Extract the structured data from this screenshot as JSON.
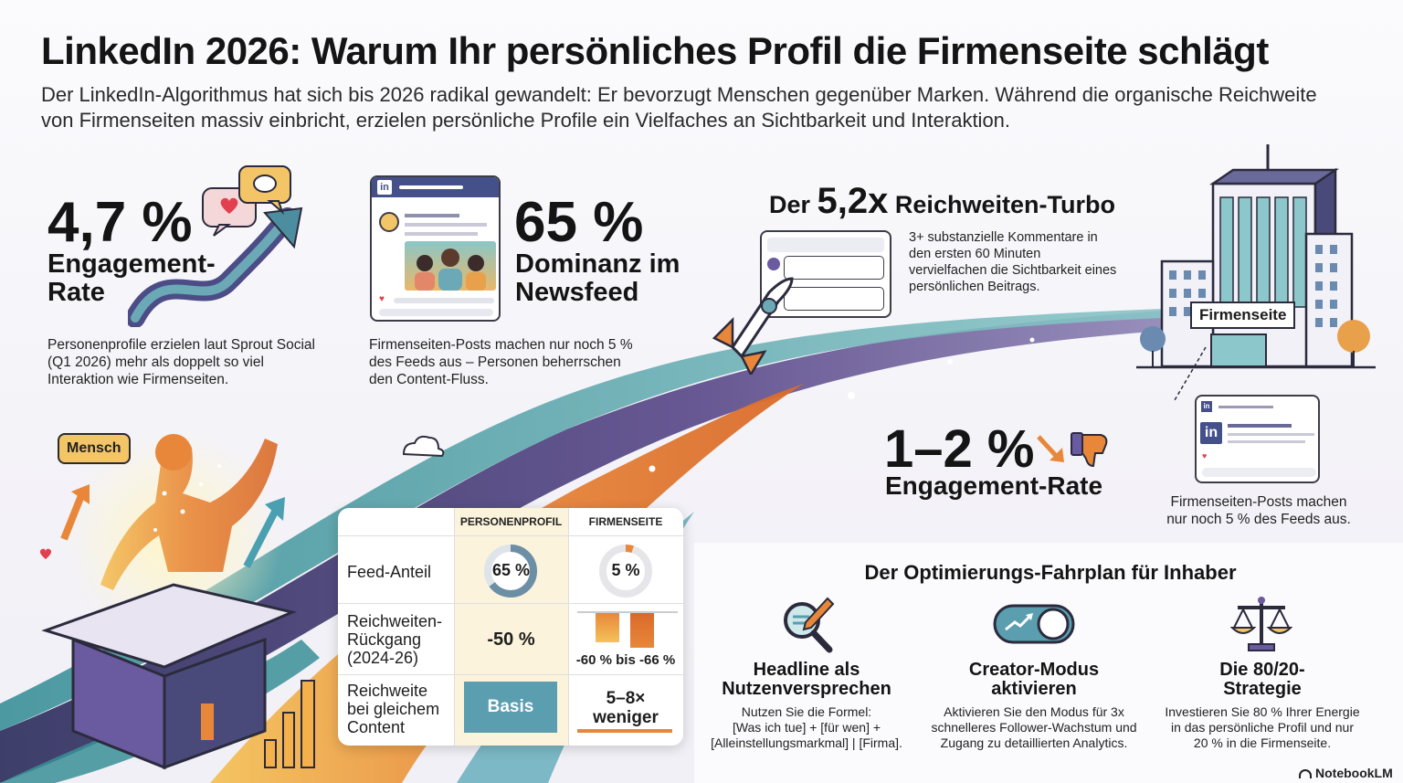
{
  "header": {
    "title": "LinkedIn 2026: Warum Ihr persönliches Profil die Firmenseite schlägt",
    "subtitle": "Der LinkedIn-Algorithmus hat sich bis 2026 radikal gewandelt: Er bevorzugt Menschen gegenüber Marken. Während die organische Reichweite von Firmenseiten massiv einbricht, erzielen persönliche Profile ein Vielfaches an Sichtbarkeit und Interaktion."
  },
  "stat_engagement": {
    "value": "4,7 %",
    "label_line1": "Engagement-",
    "label_line2": "Rate",
    "description": "Personenprofile erzielen laut Sprout Social (Q1 2026) mehr als doppelt so viel Interaktion wie Firmenseiten."
  },
  "stat_feed": {
    "value": "65 %",
    "label_line1": "Dominanz im",
    "label_line2": "Newsfeed",
    "description": "Firmenseiten-Posts machen nur noch 5 % des Feeds aus – Personen beherrschen den Content-Fluss.",
    "mock_logo": "in"
  },
  "stat_turbo": {
    "prefix": "Der",
    "value": "5,2x",
    "suffix": "Reichweiten-Turbo",
    "description": "3+ substanzielle Kommentare in den ersten 60 Minuten vervielfachen die Sichtbarkeit eines persönlichen Beitrags."
  },
  "company": {
    "building_label": "Firmenseite",
    "mock_logo": "in",
    "stat_value": "1–2 %",
    "stat_label": "Engagement-Rate",
    "description": "Firmenseiten-Posts machen nur noch 5 % des Feeds aus."
  },
  "human": {
    "bubble_label": "Mensch"
  },
  "comparison": {
    "headers": [
      "PERSONENPROFIL",
      "FIRMENSEITE"
    ],
    "rows": [
      {
        "label_lines": [
          "Feed-Anteil"
        ],
        "person": "65 %",
        "company": "5 %"
      },
      {
        "label_lines": [
          "Reichweiten-",
          "Rückgang",
          "(2024-26)"
        ],
        "person": "-50 %",
        "company": "-60 % bis -66 %"
      },
      {
        "label_lines": [
          "Reichweite",
          "bei gleichem",
          "Content"
        ],
        "person": "Basis",
        "company_lines": [
          "5–8×",
          "weniger"
        ]
      }
    ],
    "donut_person_fraction": 0.65,
    "donut_company_fraction": 0.05
  },
  "roadmap": {
    "title": "Der Optimierungs-Fahrplan für Inhaber",
    "items": [
      {
        "icon": "magnifier-pen-icon",
        "title_lines": [
          "Headline als",
          "Nutzenversprechen"
        ],
        "desc_lines": [
          "Nutzen Sie die Formel:",
          "[Was ich tue] + [für wen] +",
          "[Alleinstellungsmarkmal] | [Firma]."
        ]
      },
      {
        "icon": "toggle-switch-icon",
        "title_lines": [
          "Creator-Modus",
          "aktivieren"
        ],
        "desc_lines": [
          "Aktivieren Sie den Modus für 3x",
          "schnelleres Follower-Wachstum und",
          "Zugang zu detaillierten Analytics."
        ]
      },
      {
        "icon": "balance-scale-icon",
        "title_lines": [
          "Die 80/20-",
          "Strategie"
        ],
        "desc_lines": [
          "Investieren Sie 80 % Ihrer Energie",
          "in das persönliche Profil und nur",
          "20 % in die Firmenseite."
        ]
      }
    ]
  },
  "footer": {
    "brand": "NotebookLM"
  },
  "colors": {
    "accent_orange": "#e8873a",
    "accent_yellow": "#f3c567",
    "accent_teal": "#4a9fb0",
    "accent_purple": "#5b4a8a",
    "text_dark": "#141414"
  }
}
